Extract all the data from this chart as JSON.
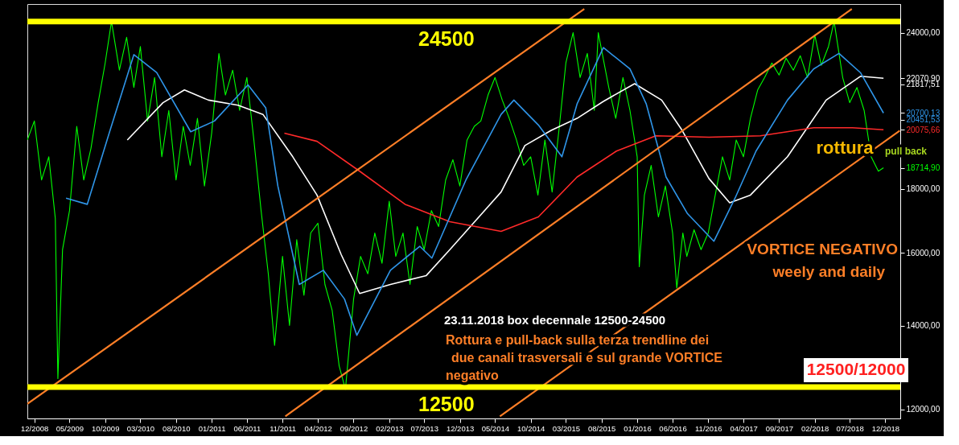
{
  "chart_data": {
    "type": "line",
    "log": true,
    "xlim": [
      "2008-11-01",
      "2019-02-03"
    ],
    "ylim": [
      11800,
      25300
    ],
    "xticks": [
      {
        "value": "2008-12",
        "label": "12/2008"
      },
      {
        "value": "2009-05",
        "label": "05/2009"
      },
      {
        "value": "2009-10",
        "label": "10/2009"
      },
      {
        "value": "2010-03",
        "label": "03/2010"
      },
      {
        "value": "2010-08",
        "label": "08/2010"
      },
      {
        "value": "2011-01",
        "label": "01/2011"
      },
      {
        "value": "2011-06",
        "label": "06/2011"
      },
      {
        "value": "2011-11",
        "label": "11/2011"
      },
      {
        "value": "2012-04",
        "label": "04/2012"
      },
      {
        "value": "2012-09",
        "label": "09/2012"
      },
      {
        "value": "2013-02",
        "label": "02/2013"
      },
      {
        "value": "2013-07",
        "label": "07/2013"
      },
      {
        "value": "2013-12",
        "label": "12/2013"
      },
      {
        "value": "2014-05",
        "label": "05/2014"
      },
      {
        "value": "2014-10",
        "label": "10/2014"
      },
      {
        "value": "2015-03",
        "label": "03/2015"
      },
      {
        "value": "2015-08",
        "label": "08/2015"
      },
      {
        "value": "2016-01",
        "label": "01/2016"
      },
      {
        "value": "2016-06",
        "label": "06/2016"
      },
      {
        "value": "2016-11",
        "label": "11/2016"
      },
      {
        "value": "2017-04",
        "label": "04/2017"
      },
      {
        "value": "2017-09",
        "label": "09/2017"
      },
      {
        "value": "2018-02",
        "label": "02/2018"
      },
      {
        "value": "2018-07",
        "label": "07/2018"
      },
      {
        "value": "2018-12",
        "label": "12/2018"
      }
    ],
    "yticks": [
      {
        "value": 12000,
        "label": "12000,00"
      },
      {
        "value": 14000,
        "label": "14000,00"
      },
      {
        "value": 16000,
        "label": "16000,00"
      },
      {
        "value": 18000,
        "label": "18000,00"
      },
      {
        "value": 18714.9,
        "label": "18714,90"
      },
      {
        "value": 20075.66,
        "label": "20075,66"
      },
      {
        "value": 20451.53,
        "label": "20451,53"
      },
      {
        "value": 20700.13,
        "label": "20700,13"
      },
      {
        "value": 21817.51,
        "label": "21817,51"
      },
      {
        "value": 22070.9,
        "label": "22070,90"
      },
      {
        "value": 24000,
        "label": "24000,00"
      }
    ],
    "series": [
      {
        "type": "line",
        "color": "#00ff00",
        "x": [
          "2008-11-01",
          "2008-12",
          "2009-01",
          "2009-02",
          "2009-03",
          "2009-03-12",
          "2009-04",
          "2009-05",
          "2009-06",
          "2009-07",
          "2009-08",
          "2009-09",
          "2009-10",
          "2009-10-28",
          "2009-12",
          "2010-01",
          "2010-02",
          "2010-03",
          "2010-04",
          "2010-05",
          "2010-06",
          "2010-07",
          "2010-08",
          "2010-09",
          "2010-10",
          "2010-11",
          "2010-12",
          "2011-01",
          "2011-02",
          "2011-03",
          "2011-04",
          "2011-05",
          "2011-06",
          "2011-07",
          "2011-08",
          "2011-09",
          "2011-09-28",
          "2011-11",
          "2011-12",
          "2012-01",
          "2012-02",
          "2012-03",
          "2012-04",
          "2012-05",
          "2012-06",
          "2012-07",
          "2012-07-28",
          "2012-09",
          "2012-10",
          "2012-11",
          "2012-12",
          "2013-01",
          "2013-02",
          "2013-03",
          "2013-04",
          "2013-05",
          "2013-06",
          "2013-07",
          "2013-08",
          "2013-09",
          "2013-10",
          "2013-11",
          "2013-12",
          "2014-01",
          "2014-02",
          "2014-03",
          "2014-04",
          "2014-05",
          "2014-06",
          "2014-07",
          "2014-08",
          "2014-09",
          "2014-10",
          "2014-11",
          "2014-12",
          "2015-01",
          "2015-02",
          "2015-03",
          "2015-04",
          "2015-05",
          "2015-06",
          "2015-07",
          "2015-07-18",
          "2015-09",
          "2015-10",
          "2015-11",
          "2015-12",
          "2016-01",
          "2016-01-10",
          "2016-02",
          "2016-03",
          "2016-04",
          "2016-05",
          "2016-06",
          "2016-06-19",
          "2016-07-15",
          "2016-08",
          "2016-09",
          "2016-10",
          "2016-11",
          "2016-12",
          "2017-01",
          "2017-02",
          "2017-03",
          "2017-04",
          "2017-05",
          "2017-06",
          "2017-07",
          "2017-08",
          "2017-09",
          "2017-10",
          "2017-11",
          "2017-12",
          "2018-01",
          "2018-02",
          "2018-03",
          "2018-04",
          "2018-04-25",
          "2018-06",
          "2018-07",
          "2018-08",
          "2018-09",
          "2018-10",
          "2018-11",
          "2018-11-23"
        ],
        "values": [
          19700,
          20400,
          18300,
          19100,
          17050,
          12700,
          16100,
          17300,
          20200,
          18300,
          19400,
          21100,
          22700,
          24500,
          22400,
          23800,
          21700,
          23400,
          20400,
          22100,
          19100,
          20800,
          18300,
          20200,
          18800,
          20500,
          18100,
          19950,
          23100,
          21400,
          22400,
          20800,
          22100,
          19700,
          17300,
          15400,
          13500,
          15900,
          14000,
          16400,
          14800,
          16600,
          16900,
          15100,
          14400,
          13000,
          12450,
          14700,
          15900,
          15400,
          16600,
          15700,
          17600,
          15900,
          16600,
          15100,
          16800,
          16100,
          17300,
          16800,
          18300,
          19000,
          18100,
          19700,
          20200,
          20400,
          21400,
          22100,
          21200,
          20500,
          19700,
          18800,
          19100,
          17800,
          19700,
          17900,
          20200,
          22700,
          24000,
          22100,
          23100,
          20800,
          24000,
          21700,
          20500,
          22100,
          20800,
          19100,
          15600,
          17800,
          18800,
          17100,
          18100,
          16600,
          15000,
          16600,
          15900,
          16700,
          16100,
          16600,
          17800,
          19100,
          18300,
          19700,
          19100,
          20500,
          21600,
          22100,
          22700,
          22200,
          22900,
          22400,
          23000,
          22100,
          23900,
          22600,
          23400,
          24500,
          22100,
          21100,
          21700,
          20800,
          19100,
          18600,
          18714.9
        ]
      },
      {
        "type": "line",
        "color": "#ffffff",
        "x": [
          "2010-01-04",
          "2010-06-06",
          "2010-09-06",
          "2010-12-18",
          "2011-04-24",
          "2011-08-09",
          "2011-12-15",
          "2012-03-28",
          "2012-07-10",
          "2012-09-27",
          "2013-02-06",
          "2013-07-10",
          "2013-10-19",
          "2014-05-27",
          "2014-09-06",
          "2014-12-28",
          "2015-04-18",
          "2015-08-09",
          "2015-12-21",
          "2016-04-15",
          "2016-07-12",
          "2016-11-04",
          "2017-02-01",
          "2017-05-01",
          "2017-10-07",
          "2018-03-22",
          "2018-08-16",
          "2018-11-23"
        ],
        "values": [
          19700,
          21100,
          21600,
          21200,
          21000,
          20650,
          19100,
          17800,
          15950,
          14850,
          15100,
          15350,
          16100,
          17900,
          19500,
          20050,
          20500,
          21150,
          21850,
          21200,
          20050,
          18350,
          17550,
          17800,
          19100,
          21200,
          22150,
          22070.9
        ]
      },
      {
        "type": "line",
        "color": "#ff2a2a",
        "x": [
          "2011-11-09",
          "2012-03-28",
          "2012-09-27",
          "2013-04-10",
          "2013-10-19",
          "2014-05-27",
          "2014-11-03",
          "2015-04-18",
          "2015-10-04",
          "2016-03-21",
          "2016-11-04",
          "2017-06-13",
          "2018-01-27",
          "2018-07-13",
          "2018-11-23"
        ],
        "values": [
          19950,
          19650,
          18600,
          17500,
          16950,
          16650,
          17100,
          18400,
          19300,
          19850,
          19800,
          19850,
          20150,
          20150,
          20075.66
        ]
      },
      {
        "type": "line",
        "color": "#2f95e8",
        "x": [
          "2009-04-16",
          "2009-07-16",
          "2009-10-20",
          "2010-02-01",
          "2010-05-10",
          "2010-10-03",
          "2011-01-13",
          "2011-06-06",
          "2011-08-21",
          "2011-10-12",
          "2012-01-12",
          "2012-04-24",
          "2012-07-24",
          "2012-09-15",
          "2013-02-06",
          "2013-06-12",
          "2013-08-03",
          "2013-12-27",
          "2014-05-27",
          "2014-07-21",
          "2014-11-03",
          "2015-02-12",
          "2015-04-18",
          "2015-08-09",
          "2015-12-01",
          "2016-02-09",
          "2016-05-04",
          "2016-08-04",
          "2016-11-25",
          "2017-02-24",
          "2017-05-25",
          "2017-10-07",
          "2018-01-27",
          "2018-05-16",
          "2018-08-16",
          "2018-11-23"
        ],
        "values": [
          17700,
          17500,
          20000,
          23050,
          22300,
          20000,
          20400,
          21800,
          20900,
          18100,
          15100,
          15500,
          14700,
          13750,
          15500,
          16200,
          15850,
          18300,
          20650,
          21200,
          20250,
          19100,
          21050,
          23350,
          22450,
          21050,
          18400,
          17200,
          16350,
          17700,
          19300,
          21200,
          22450,
          23100,
          22300,
          20700.13
        ]
      },
      {
        "type": "line",
        "color": "#ff7f27",
        "x": [
          "2008-11-01",
          "2015-05-19"
        ],
        "values": [
          12120,
          25070
        ]
      },
      {
        "type": "line",
        "color": "#ff7f27",
        "x": [
          "2011-11-13",
          "2018-07-10"
        ],
        "values": [
          11847,
          25070
        ]
      },
      {
        "type": "line",
        "color": "#ff7f27",
        "x": [
          "2014-05-22",
          "2019-02-01"
        ],
        "values": [
          11847,
          20040
        ]
      }
    ],
    "ref_lines": [
      {
        "axis": "y",
        "value": 24500,
        "label": "24500",
        "color": "#ffff00"
      },
      {
        "axis": "y",
        "value": 12500,
        "label": "12500",
        "color": "#ffff00"
      }
    ],
    "annotations": [
      "rottura",
      "pull back",
      "VORTICE NEGATIVO",
      "weely and daily",
      "23.11.2018  box decennale 12500-24500",
      "Rottura e pull-back sulla terza  trendline  dei",
      "due canali trasversali e sul grande VORTICE",
      "negativo",
      "12500/12000"
    ]
  }
}
